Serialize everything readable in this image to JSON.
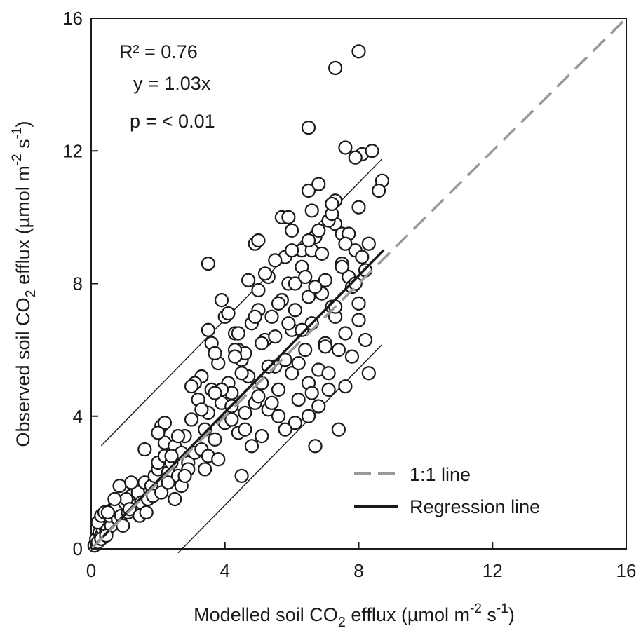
{
  "chart_data": {
    "type": "scatter",
    "xlabel": {
      "main": "Modelled soil CO",
      "sub": "2",
      "rest": " efflux (µmol m",
      "sup1": "-2",
      "mid": " s",
      "sup2": "-1",
      "close": ")"
    },
    "ylabel": {
      "main": "Observed soil CO",
      "sub": "2",
      "rest": " efflux (µmol m",
      "sup1": "-2",
      "mid": " s",
      "sup2": "-1",
      "close": ")"
    },
    "xlim": [
      0,
      16
    ],
    "ylim": [
      0,
      16
    ],
    "xticks": [
      "0",
      "4",
      "8",
      "12",
      "16"
    ],
    "yticks": [
      "0",
      "4",
      "8",
      "12",
      "16"
    ],
    "annotations": [
      "R² = 0.76",
      "y = 1.03x",
      "p = < 0.01"
    ],
    "legend": {
      "position": "bottom-right",
      "items": [
        "1:1 line",
        "Regression line"
      ]
    },
    "grid": false,
    "regression": {
      "slope": 1.03,
      "intercept": 0,
      "x_range": [
        0,
        8.75
      ],
      "band_offset": 2.8
    },
    "one_to_one": {
      "x_range": [
        0,
        16
      ]
    },
    "colors": {
      "points": "#1a1a1a",
      "one_to_one": "#999999",
      "regression": "#1a1a1a"
    },
    "series": [
      {
        "marker": "open-circle",
        "x": [
          0.1,
          0.15,
          0.2,
          0.25,
          0.3,
          0.35,
          0.4,
          0.45,
          0.5,
          0.55,
          0.2,
          0.3,
          0.4,
          0.5,
          0.6,
          0.3,
          0.45,
          0.55,
          0.65,
          0.75,
          0.8,
          0.9,
          1.0,
          1.1,
          1.2,
          1.3,
          0.85,
          0.95,
          1.05,
          1.15,
          1.4,
          1.5,
          1.6,
          1.7,
          1.8,
          1.9,
          2.0,
          1.45,
          1.65,
          1.85,
          2.0,
          2.1,
          2.2,
          2.3,
          2.1,
          2.2,
          2.3,
          2.4,
          2.5,
          2.6,
          2.7,
          2.8,
          2.9,
          3.0,
          2.5,
          2.7,
          2.9,
          3.1,
          3.2,
          3.3,
          3.4,
          3.5,
          3.3,
          3.4,
          3.5,
          3.6,
          3.7,
          3.8,
          3.9,
          3.6,
          3.8,
          4.0,
          4.1,
          4.2,
          4.3,
          4.4,
          4.5,
          4.0,
          4.2,
          4.4,
          4.6,
          4.7,
          4.8,
          4.9,
          5.0,
          4.6,
          4.8,
          5.0,
          5.1,
          5.2,
          5.3,
          5.4,
          5.5,
          5.1,
          5.3,
          5.5,
          5.6,
          5.7,
          5.8,
          5.9,
          6.0,
          5.6,
          5.8,
          6.0,
          6.1,
          6.2,
          6.3,
          6.4,
          6.5,
          6.1,
          6.3,
          6.5,
          6.6,
          6.7,
          6.8,
          6.9,
          7.0,
          6.6,
          6.8,
          7.0,
          7.1,
          7.2,
          7.3,
          7.4,
          7.5,
          7.1,
          7.3,
          7.5,
          7.6,
          7.7,
          7.8,
          7.9,
          8.0,
          8.1,
          8.2,
          8.3,
          7.6,
          7.8,
          8.0,
          8.2,
          2.2,
          2.4,
          2.6,
          3.1,
          3.3,
          3.5,
          3.7,
          3.9,
          4.1,
          4.3,
          4.5,
          4.7,
          4.9,
          5.1,
          5.3,
          5.5,
          5.7,
          5.9,
          6.1,
          6.3,
          6.5,
          6.7,
          6.9,
          7.1,
          7.3,
          7.5,
          7.7,
          7.9,
          4.2,
          4.6,
          5.0,
          5.4,
          5.8,
          6.2,
          6.6,
          7.0,
          7.4,
          3.9,
          4.4,
          5.2,
          5.6,
          6.0,
          6.4,
          6.8,
          7.2,
          7.6,
          8.0,
          3.7,
          4.9,
          5.7,
          6.5,
          7.3,
          8.1,
          6.8,
          7.6,
          6.5,
          7.3,
          8.0,
          7.9,
          8.4,
          8.7,
          8.6,
          8.3,
          6.7,
          6.5,
          3.5,
          2.8,
          4.5,
          5.0,
          6.0,
          6.6,
          7.2,
          2.0,
          1.6,
          1.2,
          0.7,
          0.5,
          3.0,
          4.3,
          5.9
        ],
        "y": [
          0.1,
          0.3,
          0.2,
          0.5,
          0.4,
          0.6,
          0.7,
          0.5,
          0.9,
          0.8,
          0.8,
          1.0,
          1.1,
          0.6,
          0.7,
          0.3,
          0.4,
          1.0,
          1.2,
          1.3,
          0.9,
          1.0,
          1.4,
          1.1,
          1.6,
          1.3,
          1.9,
          0.7,
          1.5,
          1.2,
          1.7,
          1.4,
          2.0,
          1.5,
          1.9,
          2.2,
          2.4,
          1.0,
          1.1,
          1.6,
          2.6,
          1.7,
          2.8,
          2.3,
          3.7,
          3.2,
          2.0,
          2.6,
          3.1,
          2.2,
          2.9,
          3.4,
          2.6,
          3.9,
          1.5,
          1.9,
          2.4,
          2.9,
          4.5,
          3.0,
          3.6,
          4.1,
          5.2,
          2.4,
          2.8,
          4.8,
          3.3,
          5.6,
          4.4,
          6.2,
          2.7,
          3.8,
          5.0,
          4.3,
          6.5,
          3.5,
          5.7,
          7.0,
          4.7,
          6.0,
          3.6,
          5.2,
          6.8,
          4.4,
          7.2,
          5.9,
          3.1,
          7.8,
          5.0,
          6.3,
          4.2,
          7.0,
          5.5,
          3.4,
          8.2,
          6.4,
          4.8,
          7.5,
          5.7,
          8.0,
          6.6,
          4.0,
          8.8,
          5.3,
          7.2,
          4.5,
          9.0,
          6.0,
          7.6,
          3.8,
          8.5,
          5.0,
          6.8,
          9.4,
          4.3,
          7.7,
          6.2,
          9.0,
          5.4,
          8.1,
          4.8,
          7.3,
          9.8,
          6.0,
          8.6,
          5.3,
          7.0,
          9.5,
          6.5,
          8.2,
          5.8,
          9.0,
          7.4,
          8.8,
          6.3,
          9.2,
          4.9,
          7.9,
          6.9,
          8.4,
          3.8,
          2.8,
          3.4,
          5.0,
          4.2,
          6.6,
          5.9,
          4.8,
          7.1,
          6.0,
          5.3,
          8.1,
          7.0,
          6.2,
          5.5,
          8.7,
          7.5,
          6.8,
          8.0,
          6.6,
          9.3,
          7.9,
          8.9,
          9.9,
          7.3,
          8.5,
          9.5,
          8.0,
          3.9,
          4.1,
          4.6,
          4.4,
          3.6,
          5.6,
          4.7,
          6.1,
          3.6,
          7.5,
          6.5,
          8.3,
          7.4,
          9.0,
          8.2,
          9.6,
          10.1,
          9.2,
          10.3,
          4.7,
          9.2,
          10.0,
          10.8,
          10.5,
          11.9,
          11.0,
          12.1,
          12.7,
          14.5,
          15.0,
          11.8,
          12.0,
          11.1,
          10.8,
          5.3,
          3.1,
          4.0,
          8.6,
          2.2,
          2.2,
          9.3,
          9.6,
          10.2,
          10.4,
          3.5,
          3.0,
          2.0,
          1.5,
          1.1,
          4.9,
          5.8,
          10.0
        ]
      }
    ]
  }
}
